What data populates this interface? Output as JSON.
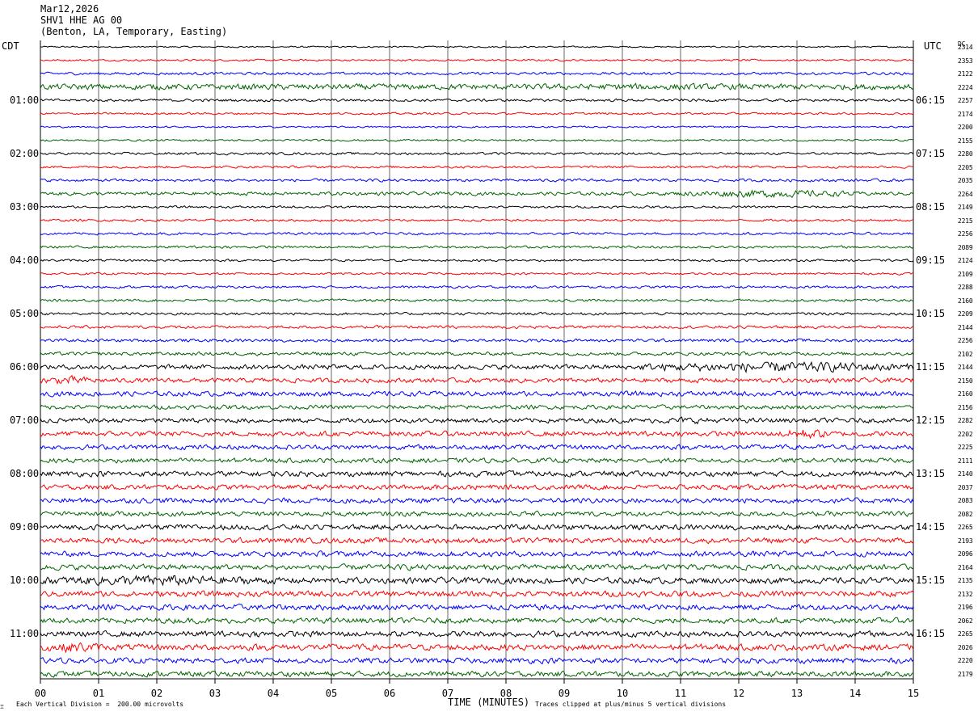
{
  "header": {
    "date": "Mar12,2026",
    "station": "SHV1 HHE AG 00",
    "location": "(Benton, LA, Temporary, Easting)"
  },
  "axes": {
    "left_timezone": "CDT",
    "right_timezone": "UTC",
    "right_column_header": "DC",
    "x_title": "TIME (MINUTES)",
    "footer_left": "Each Vertical Division =  200.00 microvolts",
    "footer_right": "Traces clipped at plus/minus 5 vertical divisions",
    "logo_glyph": "♖"
  },
  "colors": {
    "trace_cycle": [
      "#000000",
      "#ff0000",
      "#0000ff",
      "#006400"
    ],
    "grid": "#000000",
    "background": "#ffffff"
  },
  "chart_data": {
    "type": "helicorder",
    "title": "SHV1 HHE AG 00",
    "xlabel": "TIME (MINUTES)",
    "x_ticks": [
      "00",
      "01",
      "02",
      "03",
      "04",
      "05",
      "06",
      "07",
      "08",
      "09",
      "10",
      "11",
      "12",
      "13",
      "14",
      "15"
    ],
    "xlim": [
      0,
      15
    ],
    "minutes_per_line": 15,
    "num_traces": 48,
    "grid": true,
    "left_time_labels": [
      "01:00",
      "02:00",
      "03:00",
      "04:00",
      "05:00",
      "06:00",
      "07:00",
      "08:00",
      "09:00",
      "10:00",
      "11:00"
    ],
    "right_time_labels": [
      "06:15",
      "07:15",
      "08:15",
      "09:15",
      "10:15",
      "11:15",
      "12:15",
      "13:15",
      "14:15",
      "15:15",
      "16:15"
    ],
    "dc_offsets": [
      "2314",
      "2353",
      "2122",
      "2224",
      "2257",
      "2174",
      "2200",
      "2155",
      "2280",
      "2205",
      "2035",
      "2264",
      "2149",
      "2215",
      "2256",
      "2089",
      "2124",
      "2109",
      "2288",
      "2160",
      "2209",
      "2144",
      "2256",
      "2102",
      "2144",
      "2150",
      "2160",
      "2156",
      "2282",
      "2202",
      "2225",
      "2111",
      "2140",
      "2037",
      "2083",
      "2082",
      "2265",
      "2193",
      "2096",
      "2164",
      "2135",
      "2132",
      "2196",
      "2062",
      "2265",
      "2026",
      "2220",
      "2179"
    ],
    "trace_amplitude_levels": [
      0.8,
      1.0,
      1.4,
      3.0,
      1.4,
      1.1,
      0.9,
      1.0,
      1.3,
      1.2,
      1.5,
      1.8,
      1.2,
      1.2,
      1.3,
      1.3,
      1.2,
      1.1,
      1.3,
      1.3,
      1.4,
      1.5,
      1.6,
      1.8,
      2.5,
      2.4,
      2.6,
      2.2,
      2.5,
      2.6,
      2.5,
      2.4,
      2.8,
      2.6,
      2.7,
      2.5,
      2.8,
      2.8,
      2.8,
      2.9,
      3.2,
      3.0,
      3.0,
      2.8,
      3.0,
      3.2,
      2.8,
      2.8
    ],
    "events": [
      {
        "trace": 3,
        "minute_start": 7.5,
        "minute_end": 13.5,
        "level": 3.0
      },
      {
        "trace": 11,
        "minute_start": 11.0,
        "minute_end": 14.0,
        "level": 3.5
      },
      {
        "trace": 24,
        "minute_start": 10.3,
        "minute_end": 15.0,
        "level": 5.0
      },
      {
        "trace": 25,
        "minute_start": 0.0,
        "minute_end": 1.0,
        "level": 4.0
      },
      {
        "trace": 28,
        "minute_start": 10.3,
        "minute_end": 11.8,
        "level": 3.0
      },
      {
        "trace": 29,
        "minute_start": 12.7,
        "minute_end": 13.6,
        "level": 5.0
      },
      {
        "trace": 40,
        "minute_start": 0.0,
        "minute_end": 4.0,
        "level": 5.0
      },
      {
        "trace": 45,
        "minute_start": 0.0,
        "minute_end": 1.1,
        "level": 5.0
      }
    ]
  }
}
